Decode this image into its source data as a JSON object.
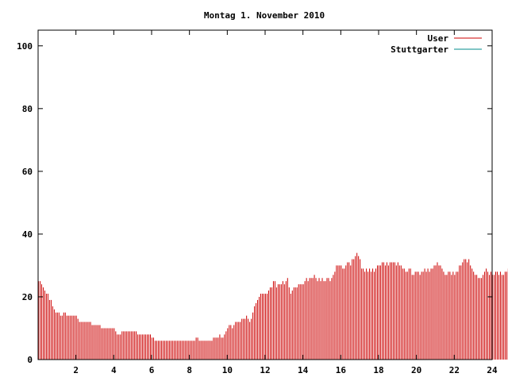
{
  "chart_data": {
    "type": "bar",
    "title": "Montag 1. November 2010",
    "xlabel": "",
    "ylabel": "",
    "xlim": [
      0,
      24
    ],
    "ylim": [
      0,
      105
    ],
    "x_ticks": [
      2,
      4,
      6,
      8,
      10,
      12,
      14,
      16,
      18,
      20,
      22,
      24
    ],
    "y_ticks": [
      0,
      20,
      40,
      60,
      80,
      100
    ],
    "grid": false,
    "legend_position": "top-right",
    "interval_minutes": 5,
    "series": [
      {
        "name": "User",
        "color": "#cc0000",
        "values": [
          25,
          25,
          24,
          23,
          22,
          21,
          21,
          19,
          19,
          17,
          16,
          15,
          15,
          15,
          14,
          14,
          15,
          15,
          14,
          14,
          14,
          14,
          14,
          14,
          14,
          13,
          12,
          12,
          12,
          12,
          12,
          12,
          12,
          12,
          11,
          11,
          11,
          11,
          11,
          11,
          10,
          10,
          10,
          10,
          10,
          10,
          10,
          10,
          10,
          9,
          8,
          8,
          8,
          9,
          9,
          9,
          9,
          9,
          9,
          9,
          9,
          9,
          9,
          8,
          8,
          8,
          8,
          8,
          8,
          8,
          8,
          8,
          7,
          7,
          6,
          6,
          6,
          6,
          6,
          6,
          6,
          6,
          6,
          6,
          6,
          6,
          6,
          6,
          6,
          6,
          6,
          6,
          6,
          6,
          6,
          6,
          6,
          6,
          6,
          6,
          7,
          7,
          6,
          6,
          6,
          6,
          6,
          6,
          6,
          6,
          6,
          7,
          7,
          7,
          7,
          8,
          7,
          7,
          8,
          9,
          10,
          11,
          11,
          10,
          11,
          12,
          12,
          12,
          12,
          13,
          13,
          13,
          14,
          13,
          12,
          13,
          15,
          17,
          18,
          19,
          20,
          21,
          21,
          21,
          21,
          21,
          22,
          23,
          23,
          25,
          25,
          23,
          24,
          24,
          24,
          25,
          24,
          25,
          26,
          23,
          21,
          22,
          23,
          23,
          23,
          24,
          24,
          24,
          24,
          25,
          26,
          25,
          26,
          26,
          26,
          27,
          26,
          25,
          26,
          25,
          26,
          25,
          25,
          26,
          26,
          25,
          26,
          27,
          28,
          30,
          30,
          30,
          30,
          29,
          29,
          30,
          31,
          31,
          30,
          32,
          32,
          33,
          34,
          33,
          32,
          29,
          29,
          28,
          29,
          28,
          29,
          28,
          29,
          28,
          29,
          30,
          30,
          30,
          31,
          31,
          30,
          31,
          30,
          31,
          31,
          31,
          31,
          30,
          31,
          30,
          30,
          29,
          29,
          28,
          28,
          29,
          29,
          27,
          27,
          28,
          28,
          28,
          27,
          28,
          28,
          29,
          28,
          29,
          28,
          29,
          29,
          30,
          30,
          31,
          30,
          30,
          29,
          28,
          27,
          27,
          28,
          28,
          27,
          28,
          27,
          28,
          28,
          30,
          30,
          31,
          32,
          32,
          31,
          32,
          30,
          29,
          28,
          27,
          27,
          26,
          26,
          26,
          27,
          28,
          29,
          28,
          27,
          28,
          27,
          27,
          28,
          28,
          27,
          28,
          27,
          27,
          28,
          28,
          29,
          30,
          28,
          26,
          28,
          29,
          29,
          27,
          26,
          26,
          27,
          25,
          24,
          24,
          24,
          22
        ]
      },
      {
        "name": "Stuttgarter",
        "color": "#008b8b",
        "values": []
      }
    ]
  }
}
